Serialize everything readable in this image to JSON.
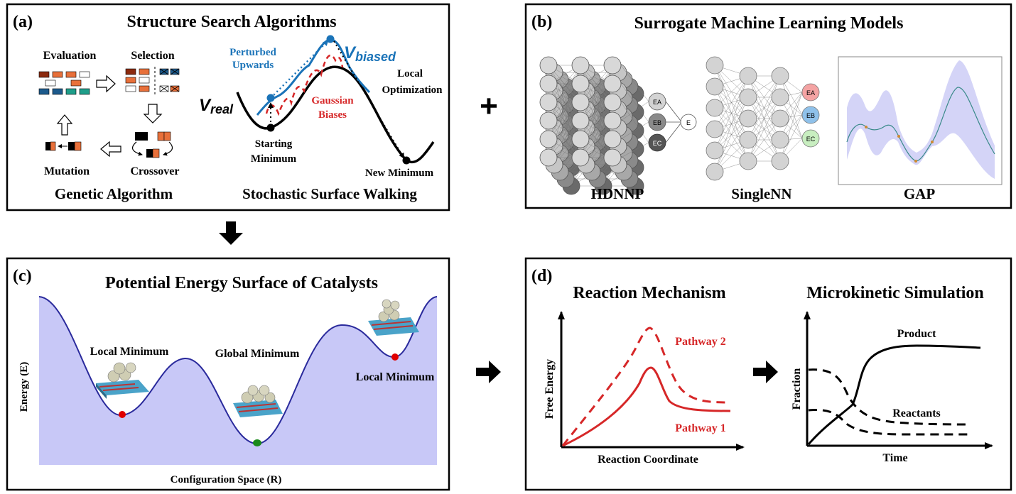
{
  "panel_a": {
    "tag": "(a)",
    "title": "Structure Search Algorithms",
    "ga": {
      "evaluation": "Evaluation",
      "selection": "Selection",
      "mutation": "Mutation",
      "crossover": "Crossover",
      "caption": "Genetic Algorithm"
    },
    "ssw": {
      "v_real": "V",
      "v_real_sub": "real",
      "v_biased": "V",
      "v_biased_sub": "biased",
      "perturbed_line1": "Perturbed",
      "perturbed_line2": "Upwards",
      "gaussian_line1": "Gaussian",
      "gaussian_line2": "Biases",
      "local_opt_line1": "Local",
      "local_opt_line2": "Optimization",
      "start_line1": "Starting",
      "start_line2": "Minimum",
      "new_min": "New Minimum",
      "caption": "Stochastic Surface Walking"
    },
    "colors": {
      "blue": "#1a73b8",
      "red": "#d62728",
      "orange": "#e8703a",
      "brown": "#8b2a0e",
      "teal": "#1f9e8a",
      "navy": "#1c5a8c"
    }
  },
  "plus": "+",
  "panel_b": {
    "tag": "(b)",
    "title": "Surrogate Machine Learning Models",
    "hdnnp": {
      "caption": "HDNNP",
      "outputs": [
        "EA",
        "EB",
        "EC"
      ],
      "total": "E"
    },
    "singlenn": {
      "caption": "SingleNN",
      "outputs": [
        "EA",
        "EB",
        "EC"
      ]
    },
    "gap": {
      "caption": "GAP"
    },
    "colors": {
      "node": "#d3d3d3",
      "red_out": "#f4a3a3",
      "blue_out": "#8fc1ea",
      "green_out": "#c8eec0",
      "band": "#c9c9f5",
      "line": "#3a8a8a"
    }
  },
  "panel_c": {
    "tag": "(c)",
    "title": "Potential Energy Surface of Catalysts",
    "ylabel": "Energy (E)",
    "xlabel": "Configuration Space (R)",
    "labels": {
      "local_left": "Local Minimum",
      "global": "Global Minimum",
      "local_right": "Local Minimum"
    },
    "colors": {
      "fill": "#c8c8f7",
      "curve": "#2a2a9c",
      "red_dot": "#e00000",
      "green_dot": "#1a8a1a"
    }
  },
  "panel_d": {
    "tag": "(d)",
    "reaction": {
      "title": "Reaction Mechanism",
      "ylabel": "Free Energy",
      "xlabel": "Reaction Coordinate",
      "pathway2": "Pathway 2",
      "pathway1": "Pathway 1"
    },
    "micro": {
      "title": "Microkinetic Simulation",
      "ylabel": "Fraction",
      "xlabel": "Time",
      "product": "Product",
      "reactants": "Reactants"
    },
    "colors": {
      "red": "#d62728"
    }
  }
}
